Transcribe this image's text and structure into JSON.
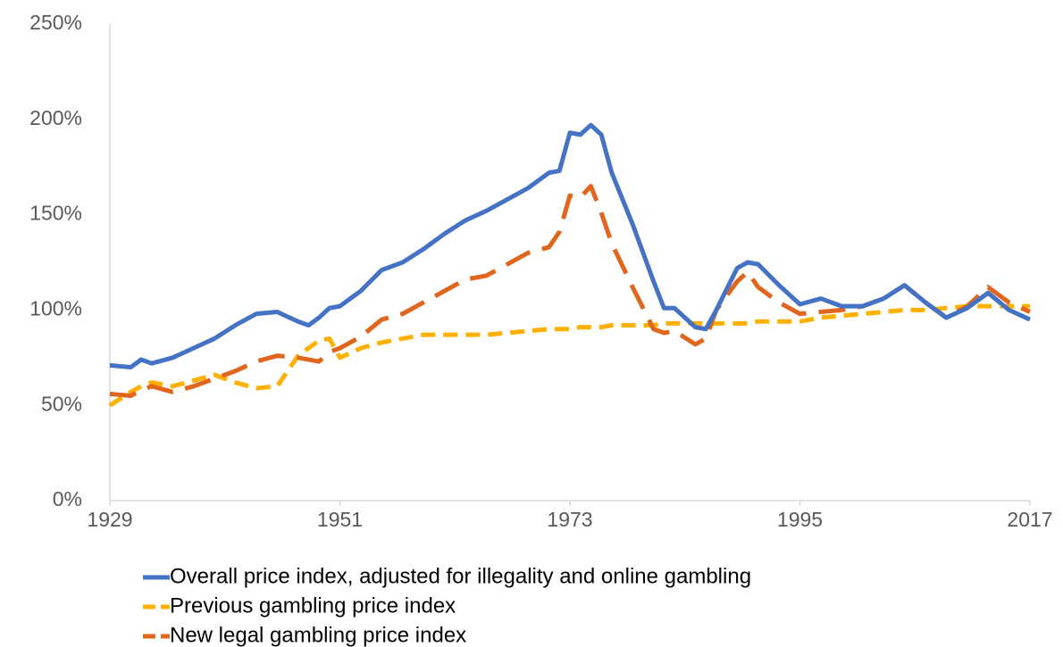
{
  "chart_data": {
    "type": "line",
    "x": [
      1929,
      1931,
      1932,
      1933,
      1935,
      1937,
      1939,
      1941,
      1943,
      1945,
      1947,
      1948,
      1949,
      1950,
      1951,
      1953,
      1955,
      1957,
      1959,
      1961,
      1963,
      1965,
      1967,
      1969,
      1971,
      1972,
      1973,
      1974,
      1975,
      1976,
      1977,
      1979,
      1981,
      1982,
      1983,
      1985,
      1986,
      1987,
      1989,
      1990,
      1991,
      1993,
      1995,
      1997,
      1999,
      2001,
      2003,
      2005,
      2007,
      2009,
      2011,
      2013,
      2015,
      2017
    ],
    "series": [
      {
        "name": "Overall price index, adjusted for illegality and online gambling",
        "color": "#4472c4",
        "dash": "solid",
        "values": [
          71,
          70,
          74,
          72,
          75,
          80,
          85,
          92,
          98,
          99,
          94,
          92,
          96,
          101,
          102,
          110,
          121,
          125,
          132,
          140,
          147,
          152,
          158,
          164,
          172,
          173,
          193,
          192,
          197,
          192,
          172,
          145,
          115,
          101,
          101,
          91,
          90,
          100,
          122,
          125,
          124,
          113,
          103,
          106,
          102,
          102,
          106,
          113,
          104,
          96,
          101,
          109,
          100,
          95
        ]
      },
      {
        "name": "Previous gambling price index",
        "color": "#ffb000",
        "dash": "dashed",
        "values": [
          50,
          57,
          60,
          62,
          60,
          63,
          66,
          62,
          59,
          60,
          76,
          80,
          84,
          85,
          75,
          80,
          83,
          85,
          87,
          87,
          87,
          87,
          88,
          89,
          90,
          90,
          90,
          91,
          91,
          91,
          92,
          92,
          92,
          93,
          93,
          93,
          93,
          93,
          93,
          93,
          94,
          94,
          94,
          96,
          97,
          98,
          99,
          100,
          100,
          101,
          102,
          102,
          102,
          102
        ]
      },
      {
        "name": "New legal gambling price index",
        "color": "#e0661e",
        "dash": "long-dashed",
        "values": [
          56,
          55,
          58,
          60,
          57,
          60,
          64,
          68,
          73,
          76,
          75,
          74,
          73,
          78,
          80,
          86,
          95,
          98,
          104,
          110,
          116,
          118,
          124,
          130,
          133,
          141,
          160,
          159,
          165,
          151,
          135,
          112,
          90,
          88,
          89,
          82,
          85,
          100,
          115,
          120,
          112,
          104,
          98,
          99,
          100,
          102,
          106,
          113,
          104,
          96,
          102,
          112,
          104,
          99
        ]
      }
    ],
    "xlim": [
      1929,
      2017
    ],
    "xticks": [
      1929,
      1951,
      1973,
      1995,
      2017
    ],
    "ylim": [
      0,
      250
    ],
    "yticks": [
      {
        "value": 0,
        "label": "0%"
      },
      {
        "value": 50,
        "label": "50%"
      },
      {
        "value": 100,
        "label": "100%"
      },
      {
        "value": 150,
        "label": "150%"
      },
      {
        "value": 200,
        "label": "200%"
      },
      {
        "value": 250,
        "label": "250%"
      }
    ],
    "grid": false,
    "legend": "bottom"
  }
}
